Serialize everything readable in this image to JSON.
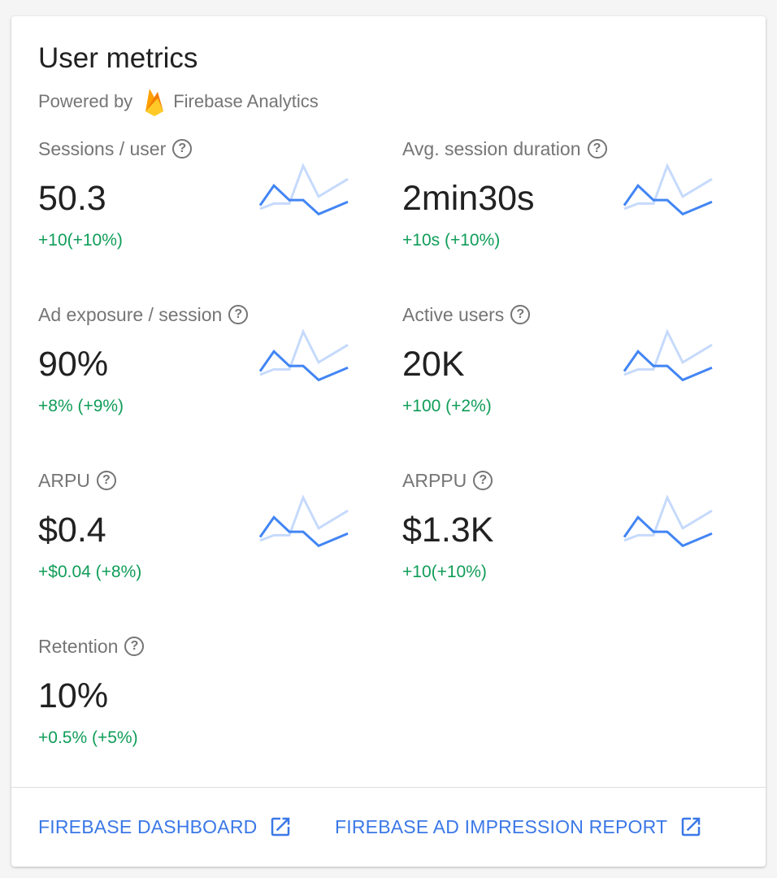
{
  "title": "User metrics",
  "powered_by": "Powered by",
  "provider": "Firebase Analytics",
  "metrics": [
    {
      "label": "Sessions / user",
      "value": "50.3",
      "change": "+10(+10%)"
    },
    {
      "label": "Avg. session duration",
      "value": "2min30s",
      "change": "+10s (+10%)"
    },
    {
      "label": "Ad exposure / session",
      "value": "90%",
      "change": "+8% (+9%)"
    },
    {
      "label": "Active users",
      "value": "20K",
      "change": "+100 (+2%)"
    },
    {
      "label": "ARPU",
      "value": "$0.4",
      "change": "+$0.04 (+8%)"
    },
    {
      "label": "ARPPU",
      "value": "$1.3K",
      "change": "+10(+10%)"
    },
    {
      "label": "Retention",
      "value": "10%",
      "change": "+0.5% (+5%)"
    }
  ],
  "sparkline": {
    "current": [
      0.1,
      0.55,
      0.22,
      0.22,
      -0.1,
      0.18
    ],
    "previous": [
      0.02,
      0.14,
      0.14,
      1.0,
      0.3,
      0.7
    ],
    "colors": {
      "current": "#4285f4",
      "previous": "#c6dafc"
    }
  },
  "help_icon": "?",
  "footer": {
    "links": [
      {
        "label": "FIREBASE DASHBOARD",
        "icon": "open-in-new-icon"
      },
      {
        "label": "FIREBASE AD IMPRESSION REPORT",
        "icon": "open-in-new-icon"
      }
    ]
  },
  "colors": {
    "positive": "#0f9d58",
    "link": "#3b78e7"
  }
}
